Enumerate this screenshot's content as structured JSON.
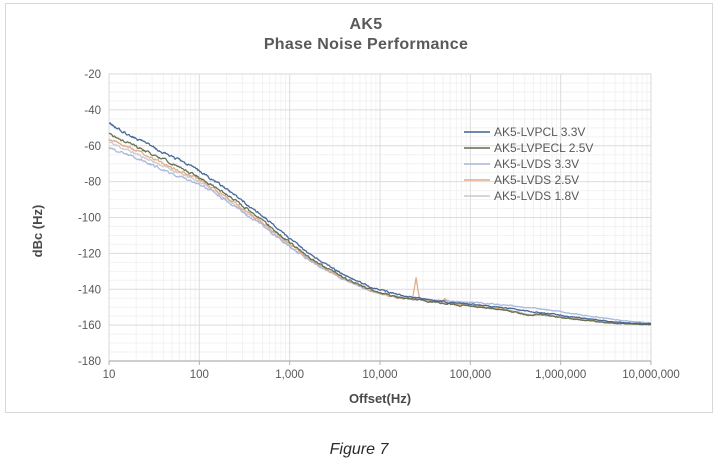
{
  "figure": {
    "caption": "Figure 7"
  },
  "chart_data": {
    "type": "line",
    "title_line1": "AK5",
    "title_line2": "Phase Noise Performance",
    "xlabel": "Offset(Hz)",
    "ylabel": "dBc (Hz)",
    "x_scale": "log",
    "x_range_log10": [
      1,
      7
    ],
    "x_ticks": [
      "10",
      "100",
      "1,000",
      "10,000",
      "100,000",
      "1,000,000",
      "10,000,000"
    ],
    "ylim": [
      -180,
      -20
    ],
    "y_major_step": 20,
    "y_minor_step": 5,
    "y_ticks": [
      "-20",
      "-40",
      "-60",
      "-80",
      "-100",
      "-120",
      "-140",
      "-160",
      "-180"
    ],
    "grid": true,
    "legend_position": "inside-right",
    "series": [
      {
        "name": "AK5-LVDS 1.8V",
        "color": "#c7c8ca",
        "points_log10hz_dbc": [
          [
            1,
            -58
          ],
          [
            1.3,
            -64.5
          ],
          [
            1.7,
            -73.5
          ],
          [
            2,
            -80
          ],
          [
            2.3,
            -89.5
          ],
          [
            2.7,
            -103.8
          ],
          [
            3,
            -115.8
          ],
          [
            3.3,
            -126
          ],
          [
            3.6,
            -134.2
          ],
          [
            3.9,
            -140.8
          ],
          [
            4.2,
            -144.6
          ],
          [
            4.5,
            -146.3
          ],
          [
            4.8,
            -148
          ],
          [
            5.1,
            -149.8
          ],
          [
            5.4,
            -151.6
          ],
          [
            5.55,
            -152.8
          ],
          [
            5.65,
            -154.2
          ],
          [
            5.8,
            -154.6
          ],
          [
            6,
            -155.5
          ],
          [
            6.3,
            -157
          ],
          [
            6.6,
            -158.5
          ],
          [
            7,
            -159.4
          ]
        ]
      },
      {
        "name": "AK5-LVDS 3.3V",
        "color": "#a7b6da",
        "points_log10hz_dbc": [
          [
            1,
            -61
          ],
          [
            1.3,
            -67
          ],
          [
            1.7,
            -75.5
          ],
          [
            2,
            -81.5
          ],
          [
            2.3,
            -90.5
          ],
          [
            2.7,
            -104.5
          ],
          [
            3,
            -116.5
          ],
          [
            3.3,
            -126.5
          ],
          [
            3.6,
            -134.5
          ],
          [
            3.9,
            -141
          ],
          [
            4.2,
            -144.5
          ],
          [
            4.5,
            -145.8
          ],
          [
            4.8,
            -146.8
          ],
          [
            5.1,
            -147.5
          ],
          [
            5.4,
            -149
          ],
          [
            5.7,
            -150.5
          ],
          [
            6,
            -152.5
          ],
          [
            6.3,
            -154.8
          ],
          [
            6.6,
            -157
          ],
          [
            6.8,
            -158
          ],
          [
            7,
            -158.8
          ]
        ]
      },
      {
        "name": "AK5-LVDS 2.5V",
        "color": "#e2a985",
        "points_log10hz_dbc": [
          [
            1,
            -56
          ],
          [
            1.3,
            -62.5
          ],
          [
            1.7,
            -72
          ],
          [
            2,
            -79
          ],
          [
            2.3,
            -88.5
          ],
          [
            2.7,
            -103
          ],
          [
            3,
            -115
          ],
          [
            3.3,
            -125.5
          ],
          [
            3.6,
            -134
          ],
          [
            3.9,
            -141
          ],
          [
            4.2,
            -144.8
          ],
          [
            4.36,
            -145.5
          ],
          [
            4.4,
            -133.5
          ],
          [
            4.44,
            -145.8
          ],
          [
            4.68,
            -147.3
          ],
          [
            4.72,
            -145.5
          ],
          [
            4.76,
            -147.6
          ],
          [
            5.1,
            -149.5
          ],
          [
            5.4,
            -151.5
          ],
          [
            5.55,
            -153
          ],
          [
            5.65,
            -154.5
          ],
          [
            5.8,
            -154
          ],
          [
            6,
            -155.5
          ],
          [
            6.3,
            -157.2
          ],
          [
            6.6,
            -158.8
          ],
          [
            7,
            -159.6
          ]
        ]
      },
      {
        "name": "AK5-LVPECL 2.5V",
        "color": "#5f6b4f",
        "points_log10hz_dbc": [
          [
            1,
            -53.5
          ],
          [
            1.3,
            -60.5
          ],
          [
            1.7,
            -70
          ],
          [
            2,
            -77.5
          ],
          [
            2.3,
            -87
          ],
          [
            2.7,
            -101.5
          ],
          [
            3,
            -114
          ],
          [
            3.3,
            -125
          ],
          [
            3.6,
            -133.5
          ],
          [
            3.9,
            -140.5
          ],
          [
            4.2,
            -144.5
          ],
          [
            4.5,
            -146.5
          ],
          [
            4.8,
            -148.5
          ],
          [
            5.1,
            -150
          ],
          [
            5.4,
            -151.8
          ],
          [
            5.55,
            -153.5
          ],
          [
            5.65,
            -154.8
          ],
          [
            5.75,
            -153.8
          ],
          [
            6,
            -155.8
          ],
          [
            6.3,
            -157.5
          ],
          [
            6.6,
            -159
          ],
          [
            7,
            -159.8
          ]
        ]
      },
      {
        "name": "AK5-LVPCL 3.3V",
        "color": "#3e6293",
        "points_log10hz_dbc": [
          [
            1,
            -47.5
          ],
          [
            1.3,
            -56
          ],
          [
            1.7,
            -66
          ],
          [
            2,
            -74
          ],
          [
            2.3,
            -84
          ],
          [
            2.7,
            -99
          ],
          [
            3,
            -112
          ],
          [
            3.3,
            -123
          ],
          [
            3.6,
            -132
          ],
          [
            3.9,
            -139
          ],
          [
            4.2,
            -143
          ],
          [
            4.5,
            -145.5
          ],
          [
            4.8,
            -147.5
          ],
          [
            5.1,
            -148.8
          ],
          [
            5.4,
            -150.5
          ],
          [
            5.7,
            -152.5
          ],
          [
            6,
            -154.5
          ],
          [
            6.3,
            -156.5
          ],
          [
            6.6,
            -158.3
          ],
          [
            6.8,
            -159
          ],
          [
            7,
            -159.3
          ]
        ]
      }
    ],
    "legend_order": [
      "AK5-LVPCL 3.3V",
      "AK5-LVPECL 2.5V",
      "AK5-LVDS 3.3V",
      "AK5-LVDS 2.5V",
      "AK5-LVDS 1.8V"
    ],
    "colors": {
      "title_text": "#595959",
      "tick_text": "#595959",
      "grid_major": "#dcdcdc",
      "grid_minor": "#f2f2f2",
      "axis_line": "#b0b0b0",
      "plot_border": "#d9d9d9",
      "figure_border": "#d8d8d8"
    }
  }
}
